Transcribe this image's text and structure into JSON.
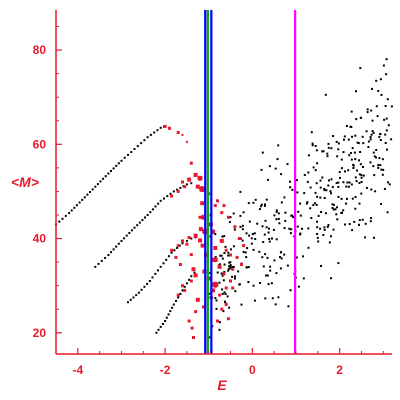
{
  "chart_data": {
    "type": "scatter",
    "title": "",
    "xlabel": "E",
    "ylabel": "<M>",
    "xlim": [
      -4.5,
      3.2
    ],
    "ylim": [
      15.5,
      88.5
    ],
    "x_ticks": [
      -4,
      -2,
      0,
      2
    ],
    "y_ticks": [
      20,
      40,
      60,
      80
    ],
    "grid": false,
    "legend": "none",
    "axis_color": "#e8192c",
    "vertical_lines": [
      {
        "x": -1.08,
        "color": "#0000ff"
      },
      {
        "x": -1.02,
        "color": "#00aa00"
      },
      {
        "x": -0.94,
        "color": "#0000ff"
      },
      {
        "x": 0.98,
        "color": "#ff00ff"
      }
    ],
    "series": [
      {
        "color": "#000000",
        "style": "dotted-curve",
        "points": [
          [
            -4.5,
            43
          ],
          [
            -4.2,
            45.4
          ],
          [
            -3.9,
            48.2
          ],
          [
            -3.6,
            51
          ],
          [
            -3.3,
            53.8
          ],
          [
            -3.0,
            56.5
          ],
          [
            -2.7,
            59
          ],
          [
            -2.4,
            61.5
          ],
          [
            -2.1,
            63.5
          ],
          [
            -1.95,
            64
          ]
        ]
      },
      {
        "color": "#000000",
        "style": "dotted-curve",
        "points": [
          [
            -3.6,
            34
          ],
          [
            -3.3,
            36.5
          ],
          [
            -3.0,
            39.5
          ],
          [
            -2.7,
            42.3
          ],
          [
            -2.4,
            45
          ],
          [
            -2.1,
            48
          ],
          [
            -1.8,
            50
          ],
          [
            -1.5,
            51.5
          ],
          [
            -1.3,
            52
          ]
        ]
      },
      {
        "color": "#000000",
        "style": "dotted-curve",
        "points": [
          [
            -2.85,
            26.5
          ],
          [
            -2.6,
            28.5
          ],
          [
            -2.35,
            31
          ],
          [
            -2.1,
            34
          ],
          [
            -1.85,
            37
          ],
          [
            -1.6,
            39
          ],
          [
            -1.4,
            40
          ],
          [
            -1.2,
            40.5
          ]
        ]
      },
      {
        "color": "#000000",
        "style": "dotted-curve",
        "points": [
          [
            -2.2,
            20
          ],
          [
            -2.0,
            22.5
          ],
          [
            -1.8,
            26
          ],
          [
            -1.6,
            29
          ],
          [
            -1.4,
            32
          ],
          [
            -1.25,
            33.5
          ]
        ]
      },
      {
        "color": "#000000",
        "style": "cloud",
        "region": {
          "x_center": 1.0,
          "y_center": 45.0,
          "slope": 7.5,
          "spread_y": 9,
          "x_min": -1.0,
          "x_max": 3.2,
          "count": 420
        }
      },
      {
        "color": "#e8192c",
        "style": "weighted-points",
        "points": [
          [
            -2.0,
            63.8,
            3
          ],
          [
            -1.9,
            63.4,
            3
          ],
          [
            -1.7,
            62.5,
            3
          ],
          [
            -1.6,
            62,
            2
          ],
          [
            -1.5,
            60.5,
            2
          ],
          [
            -1.4,
            56,
            3
          ],
          [
            -1.45,
            52.5,
            4
          ],
          [
            -1.3,
            53.5,
            4
          ],
          [
            -1.2,
            52.8,
            5
          ],
          [
            -1.15,
            50.5,
            6
          ],
          [
            -1.25,
            51,
            4
          ],
          [
            -1.55,
            51,
            3
          ],
          [
            -1.7,
            50,
            3
          ],
          [
            -1.85,
            49,
            3
          ],
          [
            -1.6,
            52,
            3
          ],
          [
            -1.15,
            47.5,
            4
          ],
          [
            -1.12,
            44.5,
            5
          ],
          [
            -1.08,
            41.5,
            6
          ],
          [
            -1.14,
            38.5,
            4
          ],
          [
            -1.05,
            36.5,
            5
          ],
          [
            -1.45,
            40.2,
            3
          ],
          [
            -1.6,
            39.5,
            3
          ],
          [
            -1.3,
            40.6,
            4
          ],
          [
            -1.2,
            39.6,
            4
          ],
          [
            -1.7,
            38.5,
            3
          ],
          [
            -1.85,
            37.5,
            3
          ],
          [
            -1.5,
            38.8,
            3
          ],
          [
            -1.4,
            36.6,
            3
          ],
          [
            -1.35,
            33.5,
            4
          ],
          [
            -1.3,
            32.2,
            4
          ],
          [
            -1.4,
            31,
            3
          ],
          [
            -1.55,
            29,
            3
          ],
          [
            -1.7,
            28,
            3
          ],
          [
            -1.25,
            27,
            4
          ],
          [
            -1.3,
            24.5,
            3
          ],
          [
            -1.45,
            22.5,
            3
          ],
          [
            -1.38,
            21,
            3
          ],
          [
            -1.35,
            19,
            3
          ],
          [
            -0.95,
            43,
            4
          ],
          [
            -0.9,
            41.5,
            4
          ],
          [
            -0.85,
            38,
            4
          ],
          [
            -0.7,
            39.5,
            4
          ],
          [
            -0.6,
            37.5,
            3
          ],
          [
            -0.5,
            36.5,
            3
          ],
          [
            -0.85,
            35.5,
            5
          ],
          [
            -0.75,
            34,
            4
          ],
          [
            -0.65,
            32.5,
            3
          ],
          [
            -0.85,
            30.2,
            6
          ],
          [
            -0.9,
            29,
            4
          ],
          [
            -0.75,
            28,
            3
          ],
          [
            -0.6,
            29.5,
            3
          ],
          [
            -0.5,
            31,
            3
          ],
          [
            -0.45,
            33.5,
            3
          ],
          [
            -0.6,
            26,
            3
          ],
          [
            -0.7,
            25,
            3
          ],
          [
            -0.95,
            27.5,
            3
          ],
          [
            -0.85,
            47,
            3
          ],
          [
            -0.7,
            45.5,
            3
          ],
          [
            -0.55,
            44.5,
            3
          ],
          [
            -0.4,
            42.5,
            3
          ],
          [
            -0.3,
            40,
            3
          ],
          [
            -0.2,
            38.5,
            3
          ],
          [
            -0.8,
            48,
            3
          ],
          [
            -1.0,
            49.5,
            3
          ],
          [
            -0.65,
            47,
            3
          ],
          [
            -0.35,
            36,
            3
          ],
          [
            -0.25,
            34.5,
            3
          ],
          [
            -0.45,
            29.5,
            3
          ],
          [
            -1.6,
            30,
            3
          ],
          [
            -1.65,
            34.5,
            3
          ],
          [
            -1.75,
            36,
            3
          ],
          [
            -1.1,
            33,
            4
          ],
          [
            -1.0,
            31.5,
            4
          ],
          [
            -1.12,
            25.5,
            3
          ],
          [
            -0.8,
            22.5,
            3
          ],
          [
            -0.55,
            23,
            3
          ],
          [
            -1.2,
            44.5,
            3
          ],
          [
            -1.18,
            42,
            4
          ],
          [
            -0.95,
            45,
            3
          ],
          [
            -0.9,
            35.5,
            4
          ]
        ]
      }
    ]
  }
}
